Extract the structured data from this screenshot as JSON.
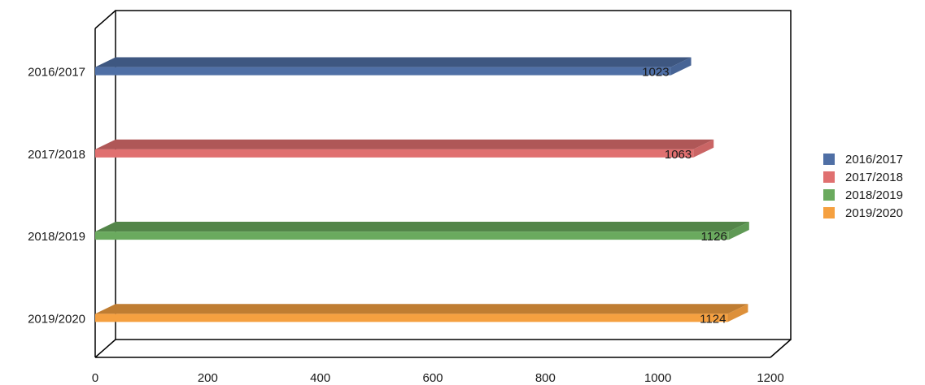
{
  "chart_data": {
    "type": "bar",
    "orientation": "horizontal",
    "style": "3d",
    "title": "",
    "xlabel": "",
    "ylabel": "",
    "categories": [
      "2016/2017",
      "2017/2018",
      "2018/2019",
      "2019/2020"
    ],
    "values": [
      1023,
      1063,
      1126,
      1124
    ],
    "data_labels": [
      "1023",
      "1063",
      "1126",
      "1124"
    ],
    "xlim": [
      0,
      1200
    ],
    "x_ticks": [
      0,
      200,
      400,
      600,
      800,
      1000,
      1200
    ],
    "x_tick_labels": [
      "0",
      "200",
      "400",
      "600",
      "800",
      "1000",
      "1200"
    ],
    "grid": false,
    "legend": {
      "position": "right",
      "entries": [
        "2016/2017",
        "2017/2018",
        "2018/2019",
        "2019/2020"
      ]
    },
    "colors": [
      "#4f6fa5",
      "#e07070",
      "#6aaa5e",
      "#f5a040"
    ]
  }
}
